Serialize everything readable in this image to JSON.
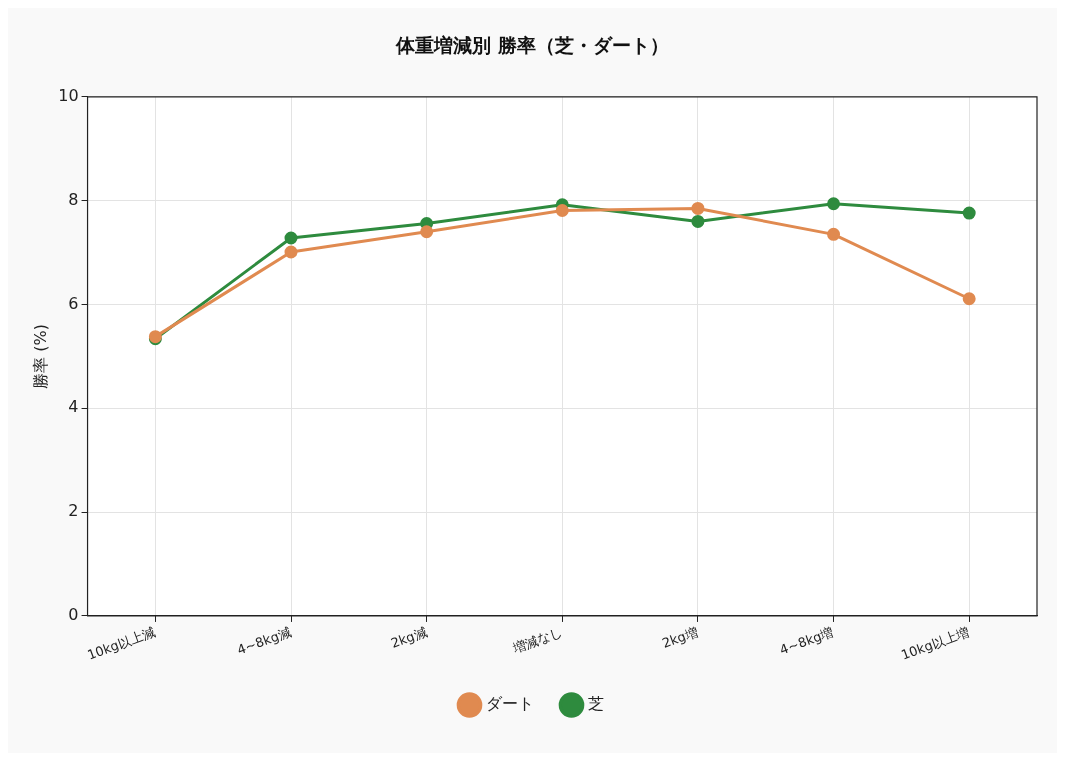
{
  "chart_data": {
    "type": "line",
    "title": "体重増減別 勝率（芝・ダート）",
    "ylabel": "勝率 (%)",
    "categories": [
      "10kg以上減",
      "4~8kg減",
      "2kg減",
      "増減なし",
      "2kg増",
      "4~8kg増",
      "10kg以上増"
    ],
    "series": [
      {
        "name": "芝",
        "color": "#2e8b3e",
        "values": [
          5.34,
          7.28,
          7.56,
          7.92,
          7.6,
          7.94,
          7.76
        ]
      },
      {
        "name": "ダート",
        "color": "#e08a50",
        "values": [
          5.38,
          7.01,
          7.4,
          7.81,
          7.85,
          7.35,
          6.11
        ]
      }
    ],
    "ylim": [
      0,
      10
    ],
    "yticks": [
      0,
      2,
      4,
      6,
      8,
      10
    ],
    "grid": true,
    "legend": "bottom",
    "marker": "circle",
    "line_style": "solid"
  }
}
